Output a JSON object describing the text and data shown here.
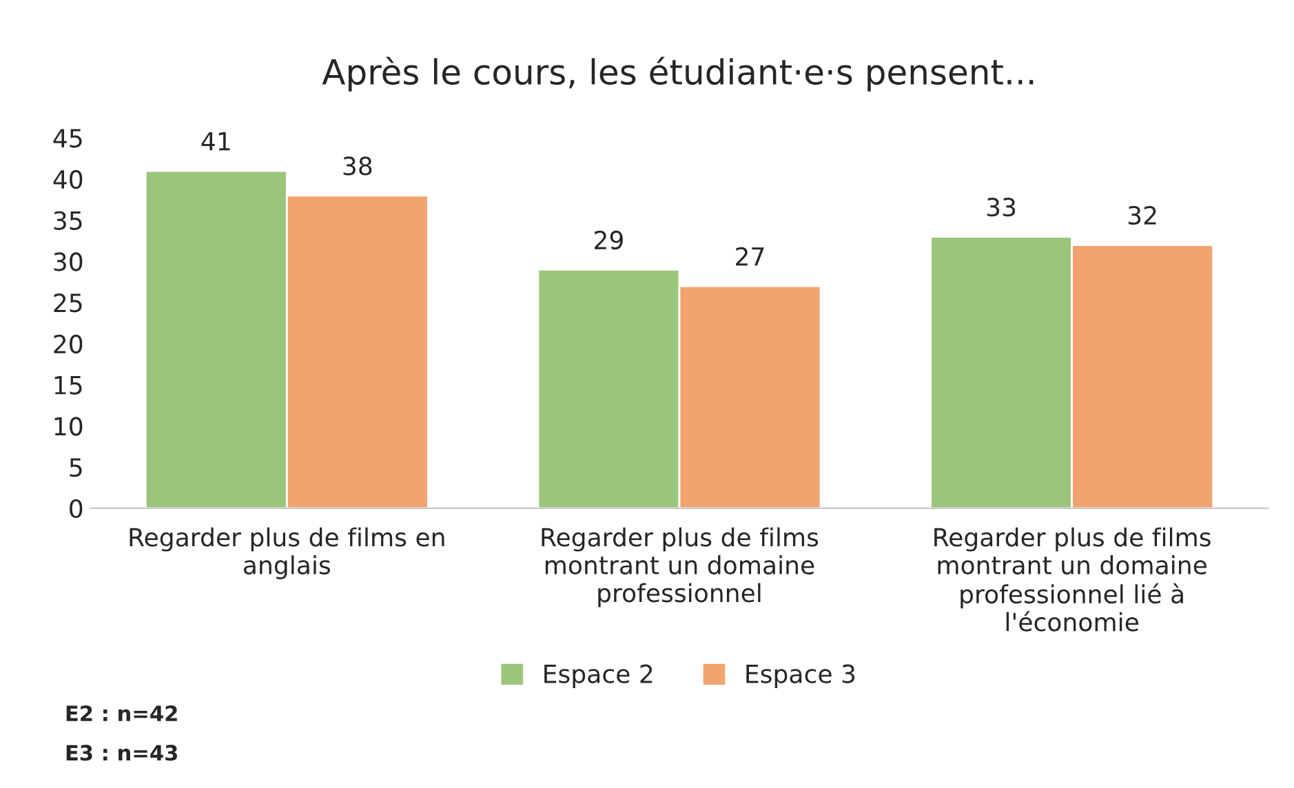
{
  "chart_data": {
    "type": "bar",
    "title": "Après le cours, les étudiant·e·s pensent...",
    "categories": [
      "Regarder plus de films en\nanglais",
      "Regarder plus de films\nmontrant un domaine\nprofessionnel",
      "Regarder plus de films\nmontrant un domaine\nprofessionnel lié à\nl'économie"
    ],
    "series": [
      {
        "name": "Espace 2",
        "color": "#9bc57a",
        "values": [
          41,
          29,
          33
        ]
      },
      {
        "name": "Espace 3",
        "color": "#f1a46f",
        "values": [
          38,
          27,
          32
        ]
      }
    ],
    "ylim": [
      0,
      45
    ],
    "yticks": [
      0,
      5,
      10,
      15,
      20,
      25,
      30,
      35,
      40,
      45
    ],
    "data_labels": true,
    "grid": false,
    "legend": "bottom",
    "annotations": [
      "E2 : n=42",
      "E3 : n=43"
    ]
  }
}
